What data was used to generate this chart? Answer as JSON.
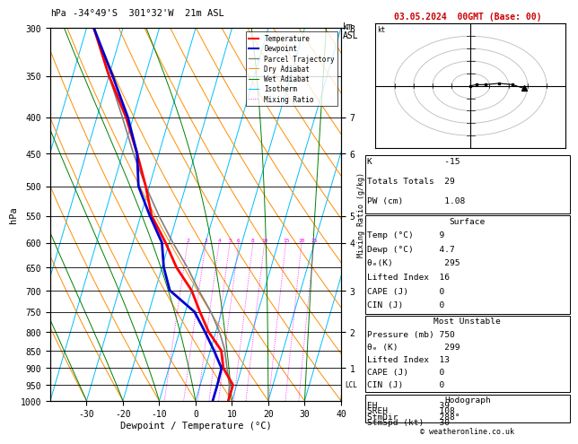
{
  "title_left": "-34°49'S  301°32'W  21m ASL",
  "title_right": "03.05.2024  00GMT (Base: 00)",
  "xlabel": "Dewpoint / Temperature (°C)",
  "ylabel_left": "hPa",
  "pressure_levels": [
    300,
    350,
    400,
    450,
    500,
    550,
    600,
    650,
    700,
    750,
    800,
    850,
    900,
    950,
    1000
  ],
  "km_ticks_p": [
    300,
    400,
    450,
    550,
    600,
    700,
    800,
    900
  ],
  "km_ticks_v": [
    "8",
    "7",
    "6",
    "5",
    "4",
    "3",
    "2",
    "1"
  ],
  "temp_C": [
    9,
    9,
    5,
    3,
    -2,
    -6,
    -10,
    -16,
    -21,
    -27,
    -31,
    -36,
    -42,
    -50,
    -58
  ],
  "temp_P": [
    1000,
    950,
    900,
    850,
    800,
    750,
    700,
    650,
    600,
    550,
    500,
    450,
    400,
    350,
    300
  ],
  "dewp_C": [
    4.7,
    4.7,
    4.5,
    1.0,
    -3.0,
    -7.5,
    -16.0,
    -19.5,
    -22.0,
    -27.5,
    -33.0,
    -36.0,
    -41.5,
    -49.0,
    -58.0
  ],
  "dewp_P": [
    1000,
    950,
    900,
    850,
    800,
    750,
    700,
    650,
    600,
    550,
    500,
    450,
    400,
    350,
    300
  ],
  "parcel_C": [
    9,
    8,
    6,
    4,
    1,
    -3,
    -8,
    -13,
    -19,
    -25,
    -31,
    -37,
    -43,
    -50,
    -58
  ],
  "parcel_P": [
    1000,
    950,
    900,
    850,
    800,
    750,
    700,
    650,
    600,
    550,
    500,
    450,
    400,
    350,
    300
  ],
  "xmin": -40,
  "xmax": 40,
  "pmin": 300,
  "pmax": 1000,
  "skew_factor": 30,
  "mixing_ratios": [
    2,
    3,
    4,
    5,
    6,
    8,
    10,
    15,
    20,
    25
  ],
  "color_temp": "#ff0000",
  "color_dewp": "#0000cc",
  "color_parcel": "#808080",
  "color_dry_adiabat": "#ff8c00",
  "color_wet_adiabat": "#008000",
  "color_isotherm": "#00bfff",
  "color_mixing": "#ff00ff",
  "background": "#ffffff",
  "lcl_pressure": 950,
  "copyright": "© weatheronline.co.uk",
  "stats_K": "-15",
  "stats_TT": "29",
  "stats_PW": "1.08",
  "surf_temp": "9",
  "surf_dewp": "4.7",
  "surf_theta": "295",
  "surf_li": "16",
  "surf_cape": "0",
  "surf_cin": "0",
  "mu_pres": "750",
  "mu_theta": "299",
  "mu_li": "13",
  "mu_cape": "0",
  "mu_cin": "0",
  "hodo_EH": "39",
  "hodo_SREH": "108",
  "hodo_StmDir": "288°",
  "hodo_StmSpd": "30"
}
